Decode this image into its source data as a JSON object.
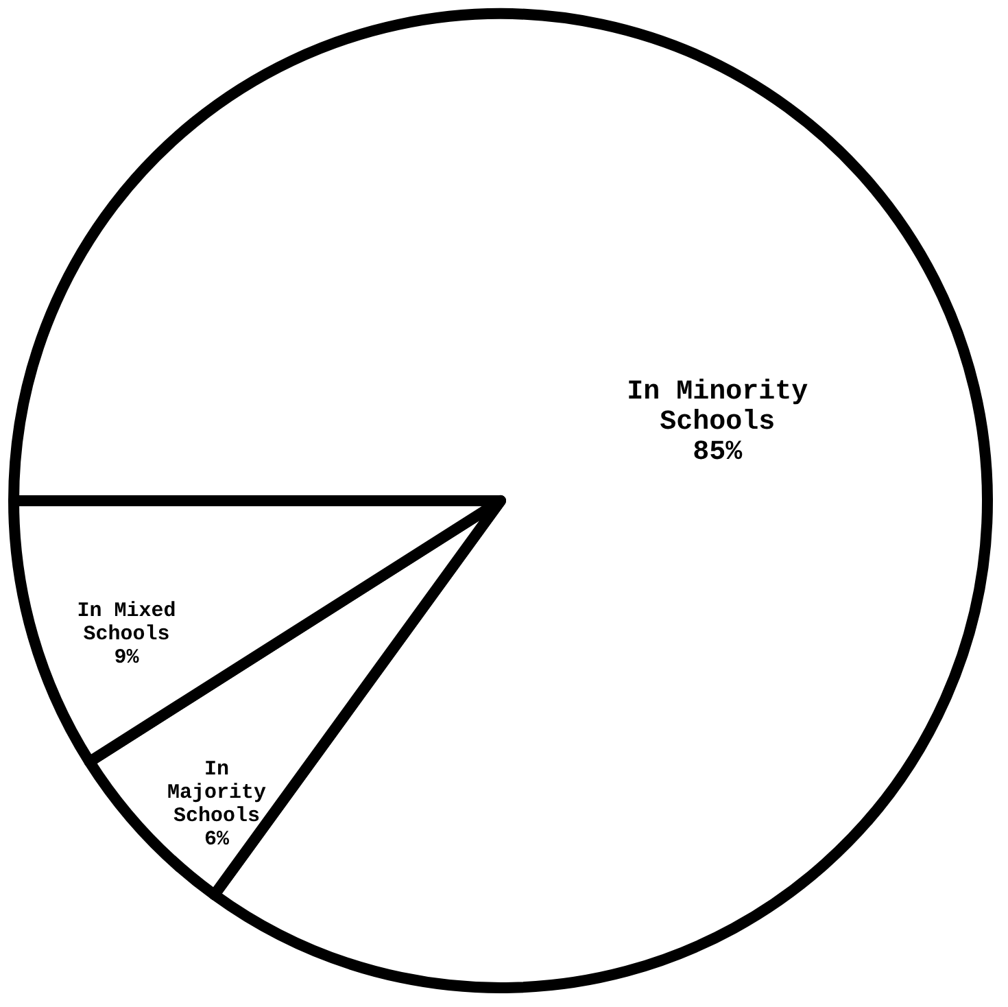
{
  "chart_data": {
    "type": "pie",
    "categories": [
      "In Minority\nSchools",
      "In\nMajority\nSchools",
      "In Mixed\nSchools"
    ],
    "values": [
      85,
      6,
      9
    ],
    "colors": [
      "#ffffff",
      "#ffffff",
      "#ffffff"
    ],
    "value_labels": [
      "85%",
      "6%",
      "9%"
    ],
    "legend": false
  }
}
